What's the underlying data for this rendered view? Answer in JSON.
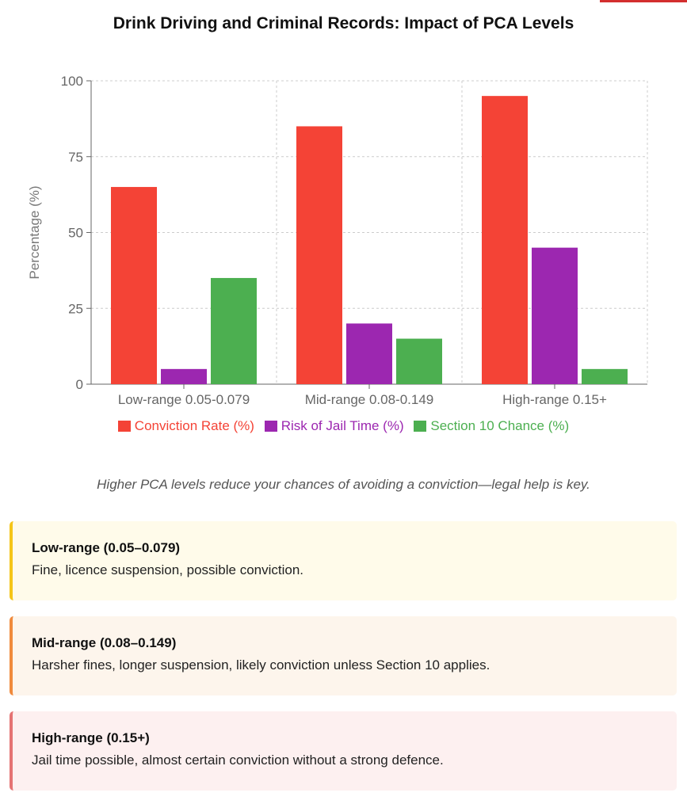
{
  "title": "Drink Driving and Criminal Records: Impact of PCA Levels",
  "chart_data": {
    "type": "bar",
    "categories": [
      "Low-range 0.05-0.079",
      "Mid-range 0.08-0.149",
      "High-range 0.15+"
    ],
    "series": [
      {
        "name": "Conviction Rate (%)",
        "color": "#f44336",
        "values": [
          65,
          85,
          95
        ]
      },
      {
        "name": "Risk of Jail Time (%)",
        "color": "#9c27b0",
        "values": [
          5,
          20,
          45
        ]
      },
      {
        "name": "Section 10 Chance (%)",
        "color": "#4caf50",
        "values": [
          35,
          15,
          5
        ]
      }
    ],
    "ylabel": "Percentage (%)",
    "ylim": [
      0,
      100
    ],
    "yticks": [
      0,
      25,
      50,
      75,
      100
    ],
    "grid": true,
    "legend": "bottom"
  },
  "note": "Higher PCA levels reduce your chances of avoiding a conviction—legal help is key.",
  "cards": [
    {
      "title": "Low-range (0.05–0.079)",
      "desc": "Fine, licence suspension, possible conviction.",
      "accent": "#f5c518",
      "bg": "#fffbea"
    },
    {
      "title": "Mid-range (0.08–0.149)",
      "desc": "Harsher fines, longer suspension, likely conviction unless Section 10 applies.",
      "accent": "#f08a3c",
      "bg": "#fdf5ec"
    },
    {
      "title": "High-range (0.15+)",
      "desc": "Jail time possible, almost certain conviction without a strong defence.",
      "accent": "#e57373",
      "bg": "#fdf0f0"
    }
  ]
}
